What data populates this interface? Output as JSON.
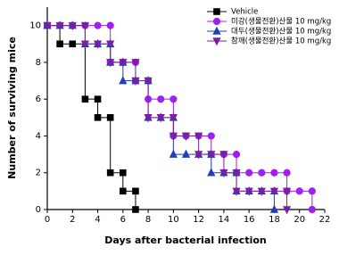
{
  "chart_data": {
    "type": "line",
    "step": "post",
    "xlabel": "Days after bacterial infection",
    "ylabel": "Number of surviving mice",
    "xlim": [
      0,
      22
    ],
    "xticks": [
      0,
      2,
      4,
      6,
      8,
      10,
      12,
      14,
      16,
      18,
      20,
      22
    ],
    "ylim": [
      0,
      11
    ],
    "yticks": [
      0,
      2,
      4,
      6,
      8,
      10
    ],
    "legend": "upper right",
    "series": [
      {
        "name": "Vehicle",
        "color": "#000000",
        "marker": "square",
        "x": [
          0,
          1,
          2,
          3,
          4,
          4,
          5,
          5,
          6,
          6,
          7,
          7
        ],
        "values": [
          10,
          9,
          9,
          6,
          6,
          5,
          5,
          2,
          2,
          1,
          1,
          0
        ]
      },
      {
        "name": "미강(생물전환)산물 10 mg/kg",
        "color": "#a020f0",
        "marker": "circle",
        "x": [
          0,
          1,
          2,
          3,
          4,
          5,
          5,
          6,
          7,
          7,
          8,
          8,
          9,
          10,
          10,
          11,
          12,
          13,
          13,
          14,
          15,
          15,
          16,
          17,
          18,
          19,
          19,
          20,
          21,
          21
        ],
        "values": [
          10,
          10,
          10,
          10,
          10,
          10,
          8,
          8,
          8,
          7,
          7,
          6,
          6,
          6,
          4,
          4,
          4,
          4,
          3,
          3,
          3,
          2,
          2,
          2,
          2,
          2,
          1,
          1,
          1,
          0
        ]
      },
      {
        "name": "대두(생물전환)산물 10 mg/kg",
        "color": "#1f3fbf",
        "marker": "triangle-up",
        "x": [
          0,
          1,
          2,
          3,
          4,
          5,
          5,
          6,
          6,
          7,
          8,
          8,
          9,
          10,
          10,
          11,
          12,
          13,
          13,
          14,
          15,
          15,
          16,
          17,
          18,
          18
        ],
        "values": [
          10,
          10,
          10,
          9,
          9,
          9,
          8,
          8,
          7,
          7,
          7,
          5,
          5,
          5,
          3,
          3,
          3,
          3,
          2,
          2,
          2,
          1,
          1,
          1,
          1,
          0
        ]
      },
      {
        "name": "참깨(생물전환)산물 10 mg/kg",
        "color": "#7b1fa2",
        "marker": "triangle-down",
        "x": [
          0,
          1,
          2,
          3,
          3,
          4,
          5,
          5,
          6,
          7,
          7,
          8,
          8,
          9,
          10,
          10,
          11,
          12,
          12,
          13,
          14,
          14,
          15,
          15,
          16,
          17,
          18,
          19,
          19
        ],
        "values": [
          10,
          10,
          10,
          10,
          9,
          9,
          9,
          8,
          8,
          8,
          7,
          7,
          5,
          5,
          5,
          4,
          4,
          4,
          3,
          3,
          3,
          2,
          2,
          1,
          1,
          1,
          1,
          1,
          0
        ]
      }
    ]
  }
}
